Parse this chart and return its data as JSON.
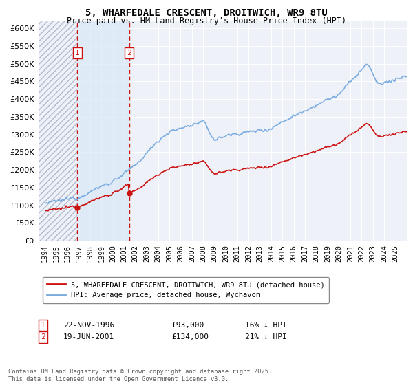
{
  "title": "5, WHARFEDALE CRESCENT, DROITWICH, WR9 8TU",
  "subtitle": "Price paid vs. HM Land Registry's House Price Index (HPI)",
  "legend_line1": "5, WHARFEDALE CRESCENT, DROITWICH, WR9 8TU (detached house)",
  "legend_line2": "HPI: Average price, detached house, Wychavon",
  "sale1_date": "22-NOV-1996",
  "sale1_price": 93000,
  "sale1_label": "16% ↓ HPI",
  "sale2_date": "19-JUN-2001",
  "sale2_price": 134000,
  "sale2_label": "21% ↓ HPI",
  "footer": "Contains HM Land Registry data © Crown copyright and database right 2025.\nThis data is licensed under the Open Government Licence v3.0.",
  "hpi_color": "#7aabe0",
  "price_color": "#cc1111",
  "sale_line_color": "#cc1111",
  "background_color": "#ffffff",
  "plot_bg_color": "#eef2f8",
  "shade_color": "#d8e8f5",
  "ylim": [
    0,
    620000
  ],
  "yticks": [
    0,
    50000,
    100000,
    150000,
    200000,
    250000,
    300000,
    350000,
    400000,
    450000,
    500000,
    550000,
    600000
  ],
  "sale1_x": 1996.875,
  "sale2_x": 2001.458
}
